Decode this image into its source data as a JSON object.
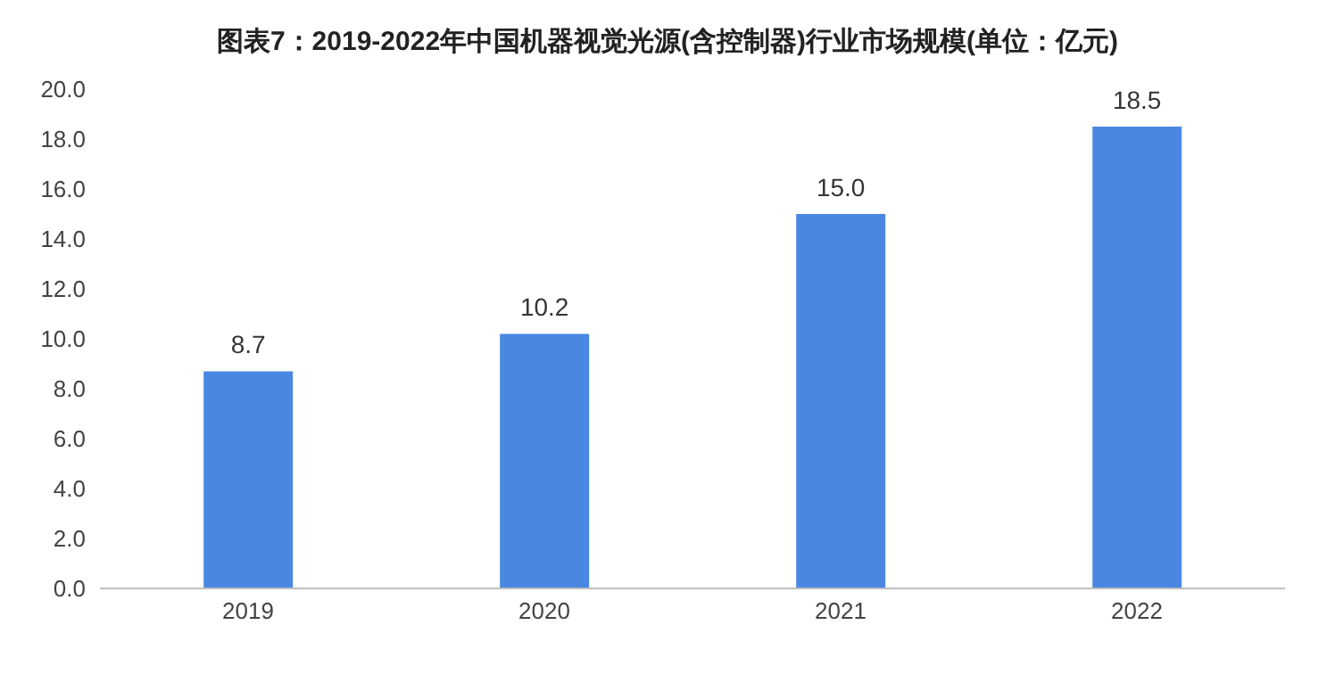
{
  "chart_data": {
    "type": "bar",
    "title": "图表7：2019-2022年中国机器视觉光源(含控制器)行业市场规模(单位：亿元)",
    "categories": [
      "2019",
      "2020",
      "2021",
      "2022"
    ],
    "values": [
      8.7,
      10.2,
      15.0,
      18.5
    ],
    "value_labels": [
      "8.7",
      "10.2",
      "15.0",
      "18.5"
    ],
    "color": "#4a87e2",
    "ylim": [
      0,
      20
    ],
    "yticks": [
      {
        "value": 0,
        "label": "0.0"
      },
      {
        "value": 2,
        "label": "2.0"
      },
      {
        "value": 4,
        "label": "4.0"
      },
      {
        "value": 6,
        "label": "6.0"
      },
      {
        "value": 8,
        "label": "8.0"
      },
      {
        "value": 10,
        "label": "10.0"
      },
      {
        "value": 12,
        "label": "12.0"
      },
      {
        "value": 14,
        "label": "14.0"
      },
      {
        "value": 16,
        "label": "16.0"
      },
      {
        "value": 18,
        "label": "18.0"
      },
      {
        "value": 20,
        "label": "20.0"
      }
    ]
  }
}
